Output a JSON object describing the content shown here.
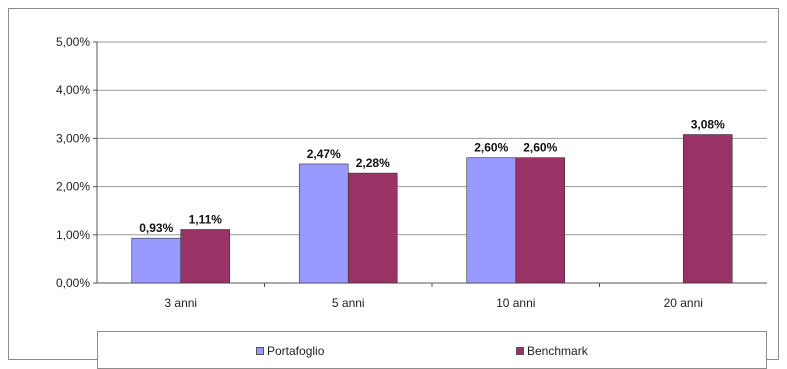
{
  "chart_data": {
    "type": "bar",
    "categories": [
      "3 anni",
      "5 anni",
      "10 anni",
      "20 anni"
    ],
    "series": [
      {
        "name": "Portafoglio",
        "color": "#9999ff",
        "values": [
          0.93,
          2.47,
          2.6,
          null
        ],
        "labels": [
          "0,93%",
          "2,47%",
          "2,60%",
          null
        ]
      },
      {
        "name": "Benchmark",
        "color": "#993366",
        "values": [
          1.11,
          2.28,
          2.6,
          3.08
        ],
        "labels": [
          "1,11%",
          "2,28%",
          "2,60%",
          "3,08%"
        ]
      }
    ],
    "ylim": [
      0,
      5
    ],
    "yticks": [
      0,
      1,
      2,
      3,
      4,
      5
    ],
    "ytick_labels": [
      "0,00%",
      "1,00%",
      "2,00%",
      "3,00%",
      "4,00%",
      "5,00%"
    ],
    "legend": {
      "position": "bottom",
      "items": [
        "Portafoglio",
        "Benchmark"
      ]
    },
    "grid": true,
    "title": "",
    "xlabel": "",
    "ylabel": ""
  }
}
